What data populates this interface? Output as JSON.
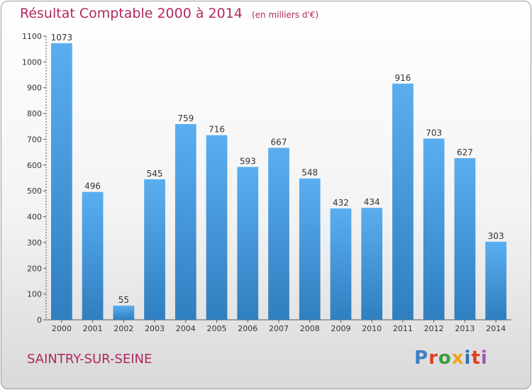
{
  "header": {
    "title": "Résultat Comptable 2000 à 2014",
    "unit": "(en milliers d'€)"
  },
  "commune": "SAINTRY-SUR-SEINE",
  "logo": {
    "text": "Proxiti",
    "colors": [
      "#3b7fc4",
      "#e0411f",
      "#3b9b3b",
      "#f0a21b",
      "#2f6fb5",
      "#e0411f",
      "#9b59b6"
    ]
  },
  "chart_data": {
    "type": "bar",
    "categories": [
      "2000",
      "2001",
      "2002",
      "2003",
      "2004",
      "2005",
      "2006",
      "2007",
      "2008",
      "2009",
      "2010",
      "2011",
      "2012",
      "2013",
      "2014"
    ],
    "values": [
      1073,
      496,
      55,
      545,
      759,
      716,
      593,
      667,
      548,
      432,
      434,
      916,
      703,
      627,
      303
    ],
    "ylim": [
      0,
      1100
    ],
    "yticks": [
      0,
      100,
      200,
      300,
      400,
      500,
      600,
      700,
      800,
      900,
      1000,
      1100
    ],
    "grid": false,
    "colors": {
      "bar_light": "#5aaef0",
      "bar_dark": "#2f7fc0"
    }
  }
}
